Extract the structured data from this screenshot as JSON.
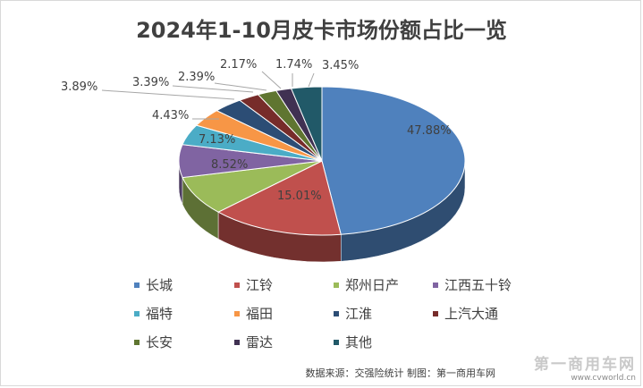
{
  "chart_data": {
    "type": "pie",
    "title": "2024年1-10月皮卡市场份额占比一览",
    "categories": [
      "长城",
      "江铃",
      "郑州日产",
      "江西五十铃",
      "福特",
      "福田",
      "江淮",
      "上汽大通",
      "长安",
      "雷达",
      "其他"
    ],
    "values": [
      47.88,
      15.01,
      8.52,
      7.13,
      4.43,
      3.89,
      3.39,
      2.39,
      2.17,
      1.74,
      3.45
    ],
    "labels": [
      "47.88%",
      "15.01%",
      "8.52%",
      "7.13%",
      "4.43%",
      "3.89%",
      "3.39%",
      "2.39%",
      "2.17%",
      "1.74%",
      "3.45%"
    ],
    "colors": [
      "#4f81bd",
      "#c0504d",
      "#9bbb59",
      "#8064a2",
      "#4bacc6",
      "#f79646",
      "#2c4d75",
      "#772c2a",
      "#5f7530",
      "#403152",
      "#215968"
    ],
    "legend_position": "bottom",
    "style": "3d"
  },
  "source_note": "数据来源：交强险统计 制图：第一商用车网",
  "watermark": {
    "name": "第一商用车网",
    "url": "www.cvworld.cn"
  }
}
